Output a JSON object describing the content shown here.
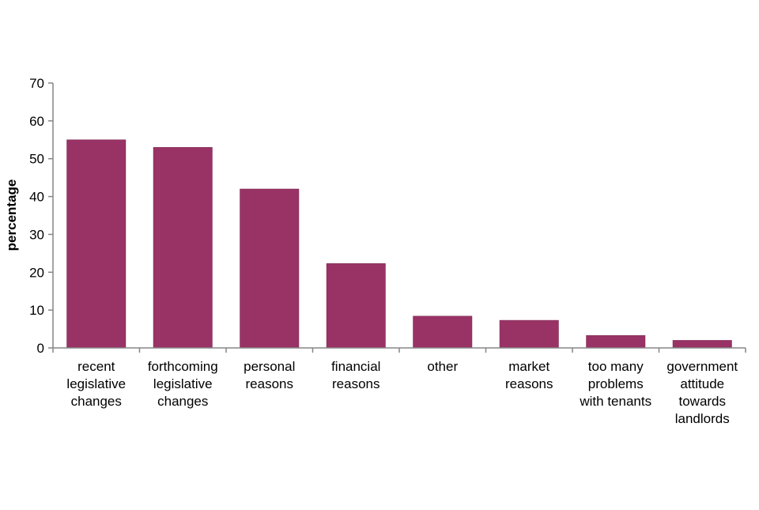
{
  "chart_data": {
    "type": "bar",
    "title": "",
    "xlabel": "",
    "ylabel": "percentage",
    "ylim": [
      0,
      70
    ],
    "yticks": [
      0,
      10,
      20,
      30,
      40,
      50,
      60,
      70
    ],
    "categories": [
      [
        "recent",
        "legislative",
        "changes"
      ],
      [
        "forthcoming",
        "legislative",
        "changes"
      ],
      [
        "personal",
        "reasons"
      ],
      [
        "financial",
        "reasons"
      ],
      [
        "other"
      ],
      [
        "market",
        "reasons"
      ],
      [
        "too many",
        "problems",
        "with tenants"
      ],
      [
        "government",
        "attitude",
        "towards",
        "landlords"
      ]
    ],
    "values": [
      55,
      53,
      42,
      22.3,
      8.4,
      7.3,
      3.3,
      2
    ],
    "grid": false,
    "legend": "none",
    "bar_color": "#993366",
    "axis_color": "#868686"
  }
}
